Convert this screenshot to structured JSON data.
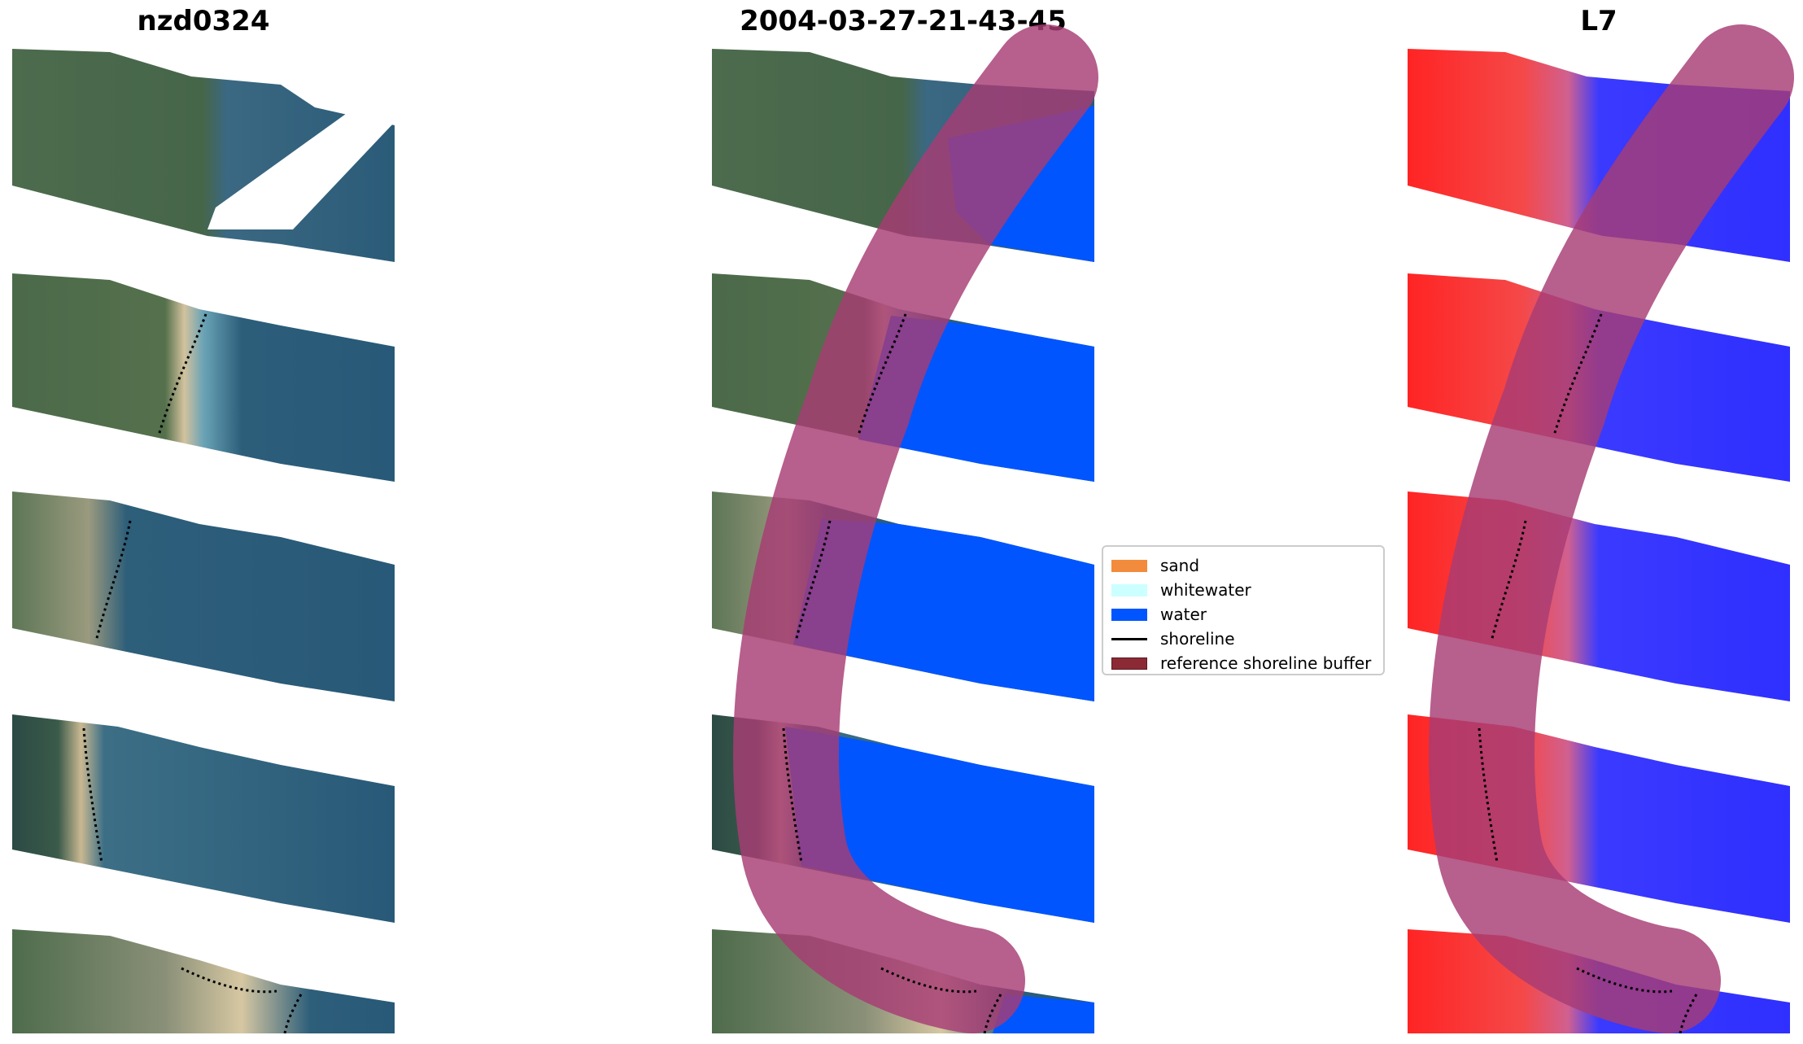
{
  "panels": [
    {
      "title": "nzd0324"
    },
    {
      "title": "2004-03-27-21-43-45"
    },
    {
      "title": "L7"
    }
  ],
  "legend": {
    "items": [
      {
        "label": "sand",
        "color": "#f28c3c",
        "kind": "patch"
      },
      {
        "label": "whitewater",
        "color": "#ccffff",
        "kind": "patch"
      },
      {
        "label": "water",
        "color": "#0055ff",
        "kind": "patch"
      },
      {
        "label": "shoreline",
        "color": "#000000",
        "kind": "line"
      },
      {
        "label": "reference shoreline buffer",
        "color": "#8b2a35",
        "kind": "patch"
      }
    ]
  },
  "colors": {
    "land": "#4e6c4e",
    "sea": "#2c5d78",
    "beach": "#c8b994",
    "water_class": "#0055ff",
    "buffer": "#b14a7e",
    "ndwi_land": "#ff2020",
    "ndwi_water": "#3030ff"
  }
}
